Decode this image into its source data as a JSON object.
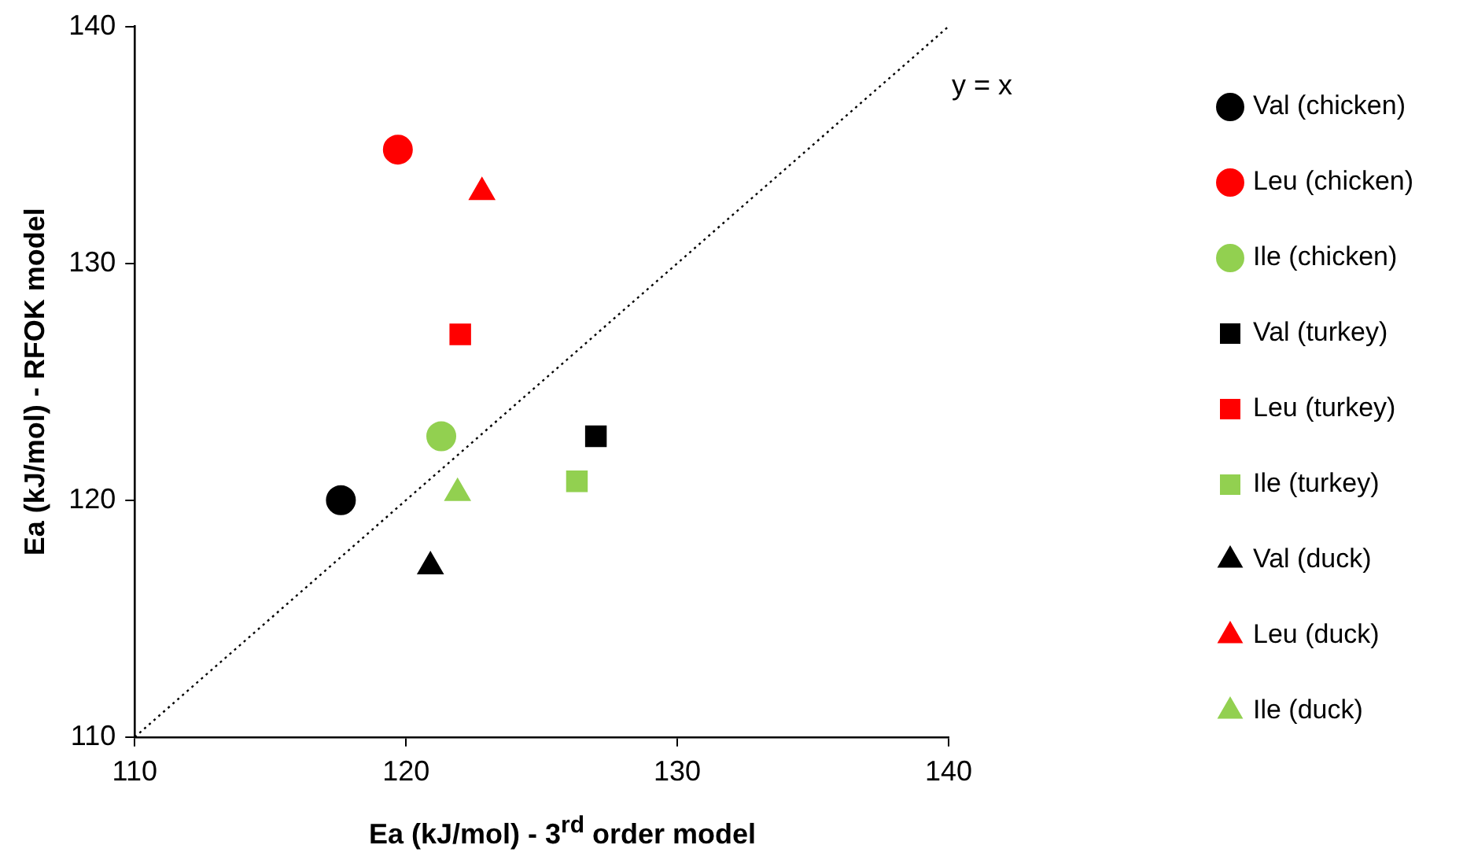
{
  "chart_data": {
    "type": "scatter",
    "xlabel": "Ea (kJ/mol) - 3$^{rd}$ order model",
    "ylabel": "Ea (kJ/mol) - RFOK model",
    "xlim": [
      110,
      140
    ],
    "xticks": [
      110,
      120,
      130,
      140
    ],
    "ylim": [
      110,
      140
    ],
    "yticks": [
      110,
      120,
      130,
      140
    ],
    "grid": false,
    "legend": "right",
    "series": [
      {
        "name": "Val (chicken)",
        "color": "#000000",
        "marker": "circle",
        "x": [
          117.6
        ],
        "values": [
          120.0
        ]
      },
      {
        "name": "Leu (chicken)",
        "color": "#ff0000",
        "marker": "circle",
        "x": [
          119.7
        ],
        "values": [
          134.8
        ]
      },
      {
        "name": "Ile (chicken)",
        "color": "#92d050",
        "marker": "circle",
        "x": [
          121.3
        ],
        "values": [
          122.7
        ]
      },
      {
        "name": "Val (turkey)",
        "color": "#000000",
        "marker": "square",
        "x": [
          127.0
        ],
        "values": [
          122.7
        ]
      },
      {
        "name": "Leu (turkey)",
        "color": "#ff0000",
        "marker": "square",
        "x": [
          122.0
        ],
        "values": [
          127.0
        ]
      },
      {
        "name": "Ile (turkey)",
        "color": "#92d050",
        "marker": "square",
        "x": [
          126.3
        ],
        "values": [
          120.8
        ]
      },
      {
        "name": "Val (duck)",
        "color": "#000000",
        "marker": "triangle",
        "x": [
          120.9
        ],
        "values": [
          117.2
        ]
      },
      {
        "name": "Leu (duck)",
        "color": "#ff0000",
        "marker": "triangle",
        "x": [
          122.8
        ],
        "values": [
          133.0
        ]
      },
      {
        "name": "Ile (duck)",
        "color": "#92d050",
        "marker": "triangle",
        "x": [
          121.9
        ],
        "values": [
          120.3
        ]
      },
      {
        "type": "line",
        "color": "#000000",
        "marker": "none",
        "line_style": "dotted",
        "x": [
          110,
          140
        ],
        "values": [
          110,
          140
        ]
      }
    ],
    "annotations": [
      "y = x"
    ]
  }
}
